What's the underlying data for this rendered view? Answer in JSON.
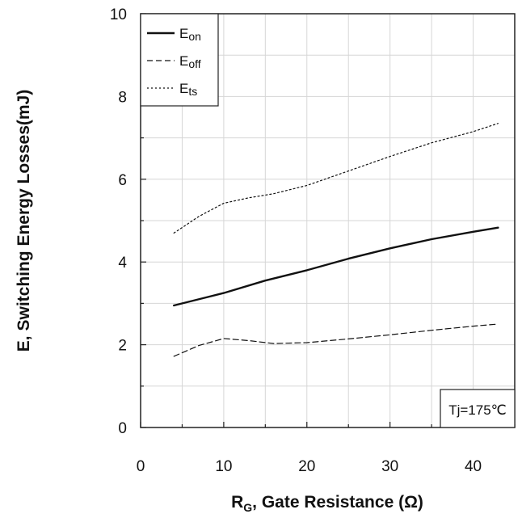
{
  "chart_data": {
    "type": "line",
    "title": "",
    "xlabel_main": "R",
    "xlabel_sub": "G",
    "xlabel_rest": ", Gate Resistance (Ω)",
    "ylabel": "E, Switching Energy Losses(mJ)",
    "xlim": [
      0,
      45
    ],
    "ylim": [
      0,
      10
    ],
    "x_ticks": [
      "0",
      "10",
      "20",
      "30",
      "40"
    ],
    "y_ticks": [
      "0",
      "2",
      "4",
      "6",
      "8",
      "10"
    ],
    "grid": true,
    "legend_position": "top-left",
    "annotation": "Tj=175℃",
    "series": [
      {
        "name": "Eon",
        "name_main": "E",
        "name_sub": "on",
        "style": "solid",
        "x": [
          4,
          10,
          15,
          20,
          25,
          30,
          35,
          40,
          43
        ],
        "y": [
          2.95,
          3.25,
          3.55,
          3.8,
          4.08,
          4.33,
          4.55,
          4.73,
          4.83
        ]
      },
      {
        "name": "Eoff",
        "name_main": "E",
        "name_sub": "off",
        "style": "dashed",
        "x": [
          4,
          7,
          10,
          13,
          16,
          20,
          25,
          30,
          35,
          40,
          43
        ],
        "y": [
          1.72,
          1.98,
          2.15,
          2.1,
          2.03,
          2.05,
          2.14,
          2.24,
          2.35,
          2.45,
          2.5
        ]
      },
      {
        "name": "Ets",
        "name_main": "E",
        "name_sub": "ts",
        "style": "dotted",
        "x": [
          4,
          7,
          10,
          13,
          16,
          20,
          25,
          30,
          35,
          40,
          43
        ],
        "y": [
          4.7,
          5.1,
          5.42,
          5.55,
          5.65,
          5.85,
          6.2,
          6.55,
          6.88,
          7.15,
          7.35
        ]
      }
    ]
  }
}
